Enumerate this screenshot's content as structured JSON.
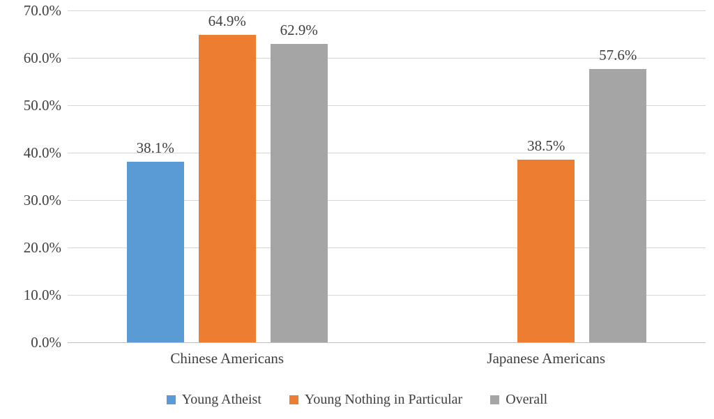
{
  "chart_data": {
    "type": "bar",
    "title": "",
    "categories": [
      "Chinese Americans",
      "Japanese Americans"
    ],
    "series": [
      {
        "name": "Young Atheist",
        "color": "#5B9BD5",
        "values": [
          38.1,
          null
        ]
      },
      {
        "name": "Young Nothing in Particular",
        "color": "#ED7D31",
        "values": [
          64.9,
          38.5
        ]
      },
      {
        "name": "Overall",
        "color": "#A5A5A5",
        "values": [
          62.9,
          57.6
        ]
      }
    ],
    "data_labels": [
      [
        "38.1%",
        null
      ],
      [
        "64.9%",
        "38.5%"
      ],
      [
        "62.9%",
        "57.6%"
      ]
    ],
    "xlabel": "",
    "ylabel": "",
    "ylim": [
      0,
      70
    ],
    "ytick_step": 10,
    "ytick_labels": [
      "0.0%",
      "10.0%",
      "20.0%",
      "30.0%",
      "40.0%",
      "50.0%",
      "60.0%",
      "70.0%"
    ],
    "grid": true,
    "legend_position": "bottom",
    "background_color": "#ffffff",
    "gridline_color": "#d6d6d6",
    "axis_line_color": "#bfbfbf",
    "text_color": "#3f3f3f"
  }
}
